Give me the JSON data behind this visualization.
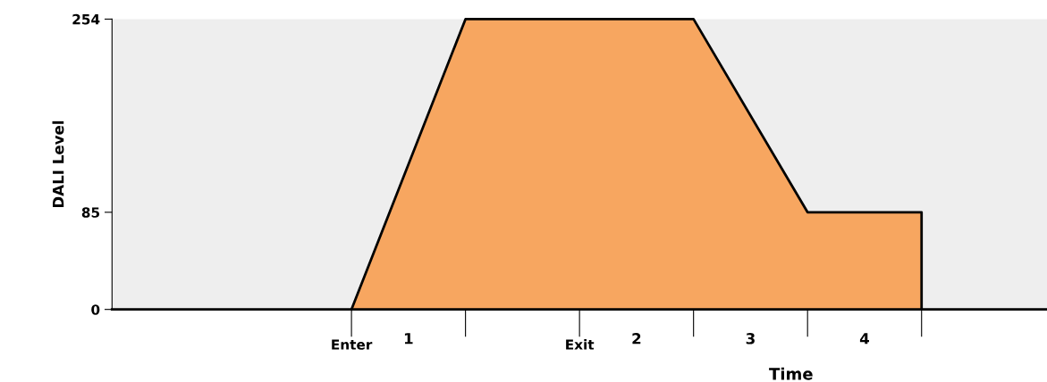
{
  "chart_data": {
    "type": "area",
    "xlabel": "Time",
    "ylabel": "DALI Level",
    "categories": [
      "Enter",
      null,
      "Exit",
      null,
      null,
      null
    ],
    "series": [
      {
        "color": "#f7a660",
        "values": [
          0,
          254,
          254,
          254,
          85,
          85
        ]
      }
    ],
    "ylim": [
      0,
      254
    ],
    "yticks": [
      0,
      85,
      254
    ],
    "grid": false,
    "annotations": [
      "1",
      "2",
      "3",
      "4"
    ]
  }
}
